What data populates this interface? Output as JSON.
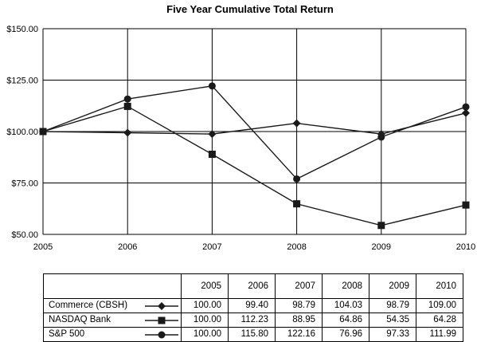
{
  "chart_data": {
    "type": "line",
    "title": "Five Year Cumulative Total Return",
    "x": [
      "2005",
      "2006",
      "2007",
      "2008",
      "2009",
      "2010"
    ],
    "y_ticks": [
      "$50.00",
      "$75.00",
      "$100.00",
      "$125.00",
      "$150.00"
    ],
    "ylim": [
      50,
      150
    ],
    "grid": "horizontal",
    "series": [
      {
        "name": "Commerce (CBSH)",
        "marker": "diamond",
        "values": [
          100.0,
          99.4,
          98.79,
          104.03,
          98.79,
          109.0
        ],
        "labels": [
          "100.00",
          "99.40",
          "98.79",
          "104.03",
          "98.79",
          "109.00"
        ]
      },
      {
        "name": "NASDAQ Bank",
        "marker": "square",
        "values": [
          100.0,
          112.23,
          88.95,
          64.86,
          54.35,
          64.28
        ],
        "labels": [
          "100.00",
          "112.23",
          "88.95",
          "64.86",
          "54.35",
          "64.28"
        ]
      },
      {
        "name": "S&P 500",
        "marker": "circle",
        "values": [
          100.0,
          115.8,
          122.16,
          76.96,
          97.33,
          111.99
        ],
        "labels": [
          "100.00",
          "115.80",
          "122.16",
          "76.96",
          "97.33",
          "111.99"
        ]
      }
    ],
    "line_color": "#1a1a1a"
  }
}
